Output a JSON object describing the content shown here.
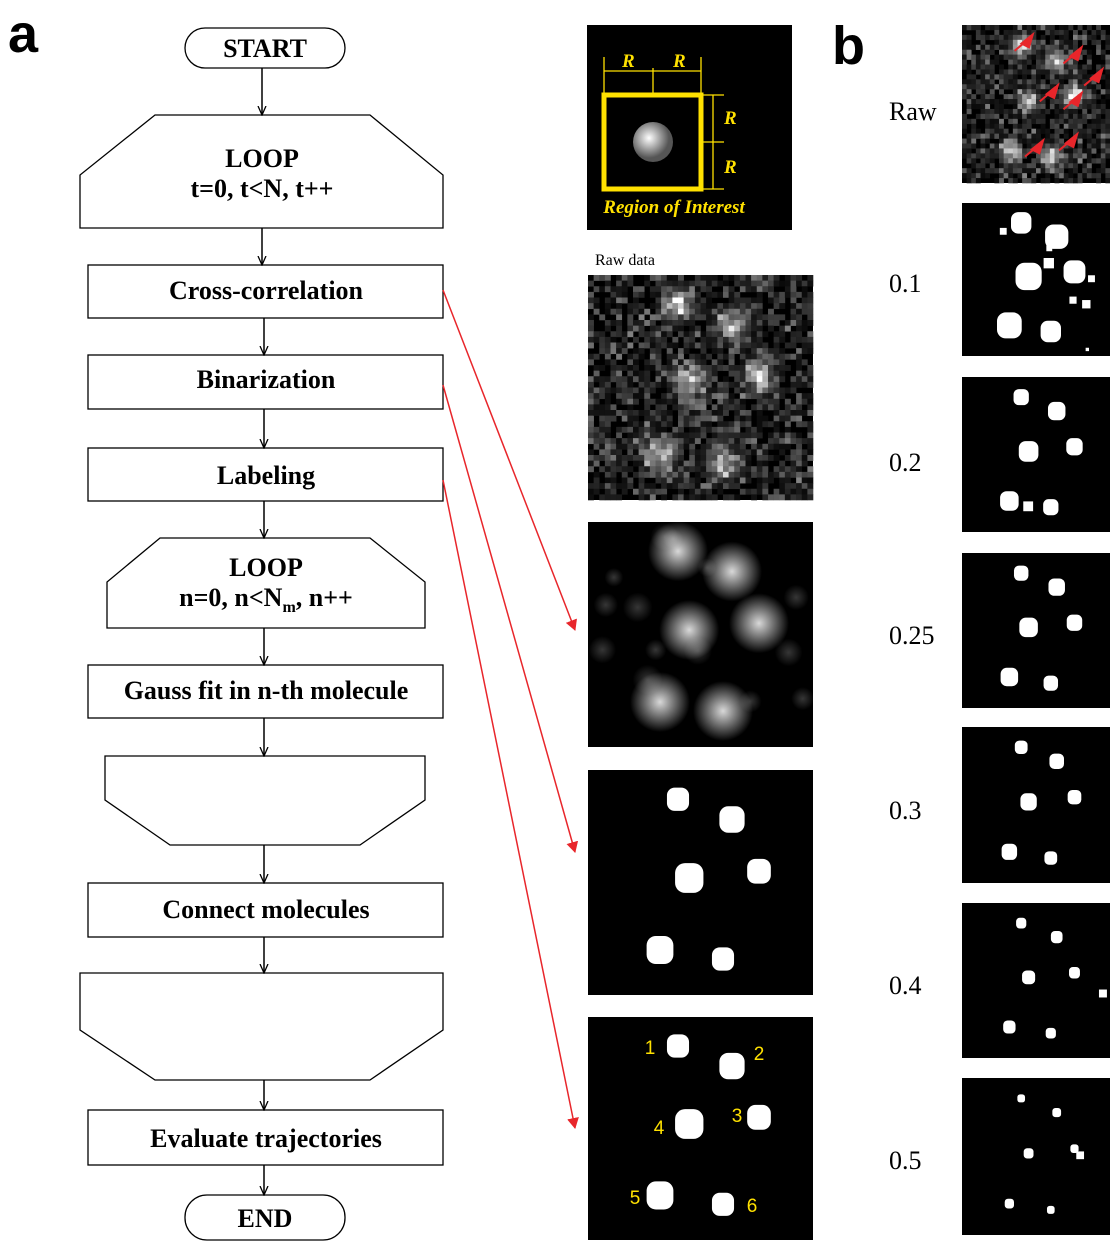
{
  "panels": {
    "a": "a",
    "b": "b"
  },
  "flowchart": {
    "nodes": [
      {
        "label": "START"
      },
      {
        "lines": [
          "LOOP",
          "t=0, t<N, t++"
        ]
      },
      {
        "label": "Cross-correlation"
      },
      {
        "label": "Binarization"
      },
      {
        "label": "Labeling"
      },
      {
        "lines": [
          "LOOP",
          [
            "n=0, n<N",
            "m",
            ", n++"
          ]
        ]
      },
      {
        "label": "Gauss fit in n-th molecule"
      },
      {
        "label": "Connect molecules"
      },
      {
        "label": "Evaluate trajectories"
      },
      {
        "label": "END"
      }
    ]
  },
  "roi": {
    "r_labels": [
      "R",
      "R",
      "R",
      "R"
    ],
    "caption": "Region of Interest"
  },
  "raw_data_label": "Raw data",
  "molecule_labels": [
    "1",
    "2",
    "3",
    "4",
    "5",
    "6"
  ],
  "panel_b_rows": [
    "Raw",
    "0.1",
    "0.2",
    "0.25",
    "0.3",
    "0.4",
    "0.5"
  ]
}
